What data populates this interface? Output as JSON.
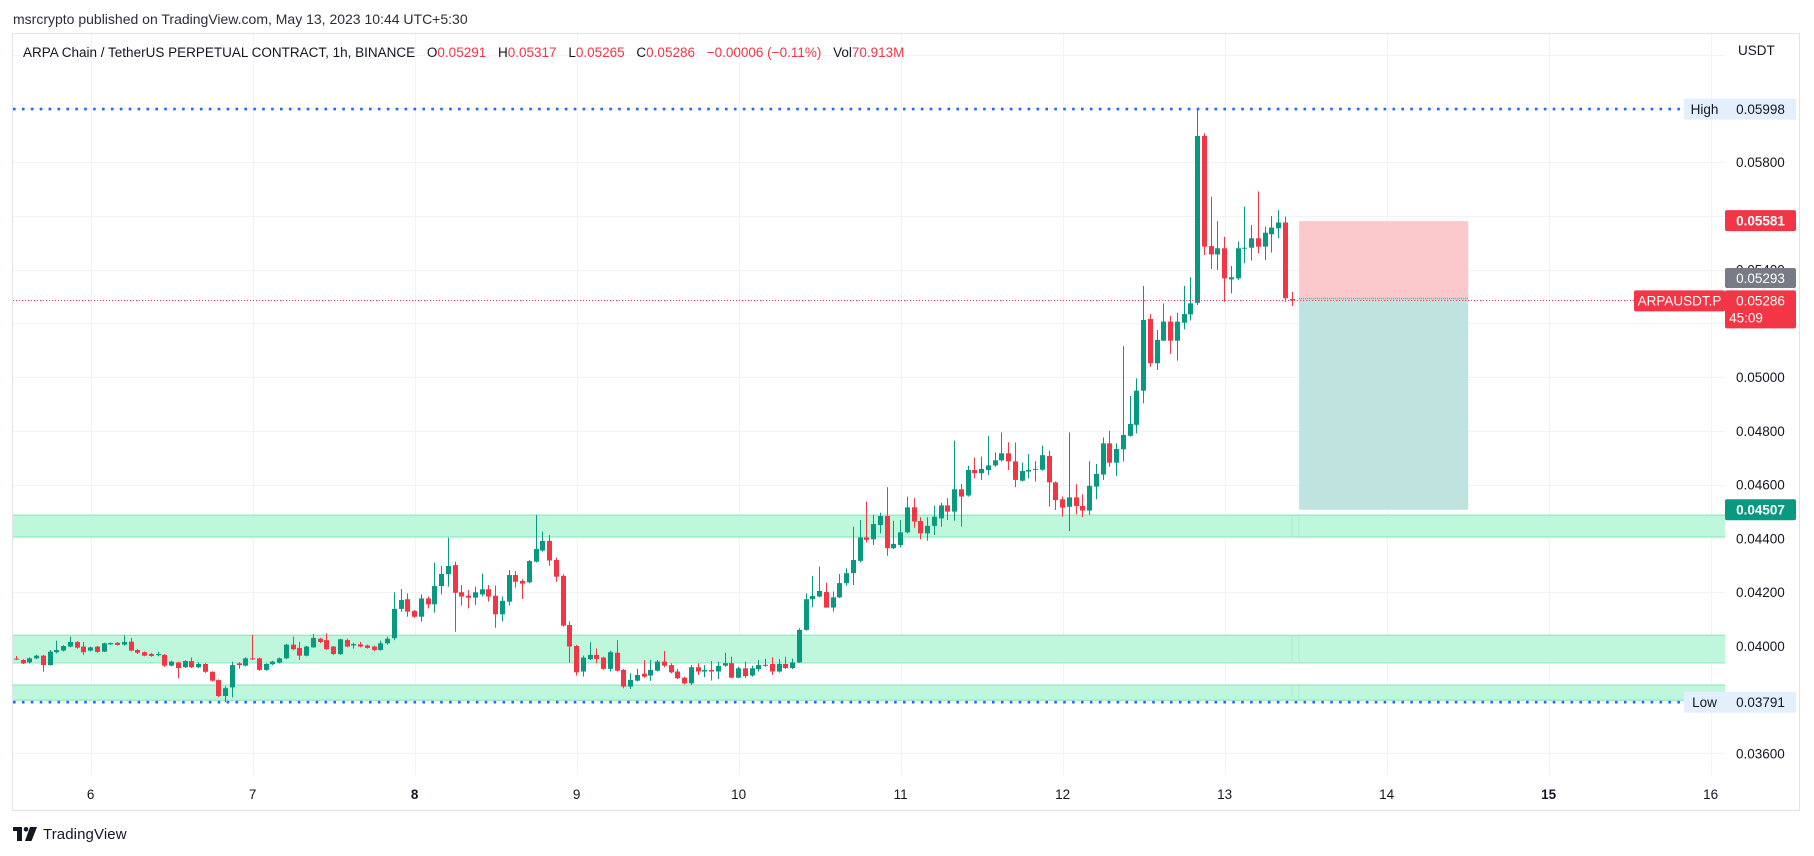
{
  "header": {
    "publish_line": "msrcrypto published on TradingView.com, May 13, 2023 10:44 UTC+5:30"
  },
  "legend": {
    "symbol_title": "ARPA Chain / TetherUS PERPETUAL CONTRACT, 1h, BINANCE",
    "open_label": "O",
    "open": "0.05291",
    "high_label": "H",
    "high": "0.05317",
    "low_label": "L",
    "low": "0.05265",
    "close_label": "C",
    "close": "0.05286",
    "change": "−0.00006 (−0.11%)",
    "volume_label": "Vol",
    "volume": "70.913M"
  },
  "price_axis": {
    "currency": "USDT",
    "tick_labels": [
      {
        "text": "0.05800",
        "value": 0.058
      },
      {
        "text": "0.05400",
        "value": 0.054
      },
      {
        "text": "0.05000",
        "value": 0.05
      },
      {
        "text": "0.04800",
        "value": 0.048
      },
      {
        "text": "0.04600",
        "value": 0.046
      },
      {
        "text": "0.04400",
        "value": 0.044
      },
      {
        "text": "0.04200",
        "value": 0.042
      },
      {
        "text": "0.04000",
        "value": 0.04
      },
      {
        "text": "0.03600",
        "value": 0.036
      }
    ]
  },
  "markers": {
    "high": {
      "label": "High",
      "price": "0.05998",
      "value": 0.05998
    },
    "low": {
      "label": "Low",
      "price": "0.03791",
      "value": 0.03791
    },
    "last_price": {
      "symbol": "ARPAUSDT.P",
      "price": "0.05286",
      "value": 0.05286,
      "countdown": "45:09"
    },
    "stop_loss": {
      "price": "0.05581",
      "value": 0.05581
    },
    "entry": {
      "price": "0.05293",
      "value": 0.05293
    },
    "take_profit": {
      "price": "0.04507",
      "value": 0.04507
    }
  },
  "footer": {
    "brand": "TradingView"
  },
  "colors": {
    "up": "#089981",
    "down": "#f23645",
    "zone_fill": "#bff7dd",
    "zone_border": "#92e8c2",
    "stop_fill": "#fbc9cc",
    "target_fill": "#bfe3df",
    "marker_line": "#2962ff",
    "grid": "#f0f3fa",
    "frame": "#e0e3eb",
    "tag_bg": "#e3effd",
    "entry_tag": "#787b86",
    "text": "#131722"
  },
  "chart_data": {
    "type": "candlestick",
    "title": "ARPA Chain / TetherUS PERPETUAL CONTRACT, 1h, BINANCE",
    "interval": "1h",
    "xlabel": "",
    "ylabel": "USDT",
    "ylim": [
      0.0352,
      0.062772
    ],
    "y_grid_step": 0.002,
    "xlim": [
      -0.44,
      253.2
    ],
    "grid": true,
    "x_labels": [
      {
        "label": "6",
        "index": 11.07,
        "bold": false
      },
      {
        "label": "7",
        "index": 35.07,
        "bold": false
      },
      {
        "label": "8",
        "index": 59.07,
        "bold": true
      },
      {
        "label": "9",
        "index": 83.07,
        "bold": false
      },
      {
        "label": "10",
        "index": 107.07,
        "bold": false
      },
      {
        "label": "11",
        "index": 131.07,
        "bold": false
      },
      {
        "label": "12",
        "index": 155.07,
        "bold": false
      },
      {
        "label": "13",
        "index": 179.07,
        "bold": false
      },
      {
        "label": "14",
        "index": 203.07,
        "bold": false
      },
      {
        "label": "15",
        "index": 227.07,
        "bold": true
      },
      {
        "label": "16",
        "index": 251.07,
        "bold": false
      }
    ],
    "candle_fields": [
      "open",
      "high",
      "low",
      "close"
    ],
    "candles": [
      [
        0.03953,
        0.03963,
        0.03948,
        0.03951
      ],
      [
        0.03948,
        0.03951,
        0.03933,
        0.03935
      ],
      [
        0.03939,
        0.03957,
        0.03935,
        0.03954
      ],
      [
        0.03954,
        0.03968,
        0.03951,
        0.03964
      ],
      [
        0.03964,
        0.03967,
        0.03904,
        0.03929
      ],
      [
        0.03929,
        0.03985,
        0.03927,
        0.03979
      ],
      [
        0.03977,
        0.0402,
        0.03972,
        0.03985
      ],
      [
        0.03983,
        0.04003,
        0.0398,
        0.04
      ],
      [
        0.03998,
        0.04035,
        0.03995,
        0.04015
      ],
      [
        0.04015,
        0.04018,
        0.0399,
        0.03994
      ],
      [
        0.03998,
        0.04015,
        0.03967,
        0.03977
      ],
      [
        0.03983,
        0.03998,
        0.0398,
        0.03995
      ],
      [
        0.03998,
        0.04,
        0.03975,
        0.03978
      ],
      [
        0.03979,
        0.04012,
        0.03977,
        0.0401
      ],
      [
        0.04006,
        0.04013,
        0.04005,
        0.04011
      ],
      [
        0.04012,
        0.04015,
        0.04002,
        0.04004
      ],
      [
        0.04005,
        0.0404,
        0.04002,
        0.04015
      ],
      [
        0.04016,
        0.0403,
        0.0398,
        0.03983
      ],
      [
        0.03985,
        0.03988,
        0.0397,
        0.03975
      ],
      [
        0.03977,
        0.0398,
        0.03962,
        0.03964
      ],
      [
        0.0397,
        0.03975,
        0.0396,
        0.03963
      ],
      [
        0.03966,
        0.03978,
        0.03962,
        0.0397
      ],
      [
        0.03967,
        0.0397,
        0.03922,
        0.03927
      ],
      [
        0.03927,
        0.03945,
        0.03924,
        0.03942
      ],
      [
        0.03939,
        0.03942,
        0.0388,
        0.03918
      ],
      [
        0.03921,
        0.03947,
        0.03918,
        0.03944
      ],
      [
        0.03944,
        0.03957,
        0.03918,
        0.03921
      ],
      [
        0.03921,
        0.0394,
        0.03918,
        0.03933
      ],
      [
        0.03933,
        0.03936,
        0.039,
        0.03904
      ],
      [
        0.03904,
        0.03906,
        0.03868,
        0.03871
      ],
      [
        0.03873,
        0.03876,
        0.03809,
        0.03814
      ],
      [
        0.03814,
        0.0385,
        0.03791,
        0.03843
      ],
      [
        0.03846,
        0.03942,
        0.03809,
        0.03929
      ],
      [
        0.03935,
        0.0394,
        0.03915,
        0.03929
      ],
      [
        0.03927,
        0.03958,
        0.03924,
        0.03954
      ],
      [
        0.03954,
        0.04041,
        0.03948,
        0.03951
      ],
      [
        0.03954,
        0.03957,
        0.03908,
        0.03911
      ],
      [
        0.03911,
        0.03936,
        0.03908,
        0.03933
      ],
      [
        0.03932,
        0.03945,
        0.03929,
        0.03942
      ],
      [
        0.03938,
        0.03957,
        0.03935,
        0.03954
      ],
      [
        0.03954,
        0.04008,
        0.03951,
        0.04005
      ],
      [
        0.04005,
        0.04035,
        0.03984,
        0.03988
      ],
      [
        0.03993,
        0.04015,
        0.03948,
        0.03964
      ],
      [
        0.03964,
        0.04001,
        0.03962,
        0.03998
      ],
      [
        0.03995,
        0.04045,
        0.03993,
        0.0403
      ],
      [
        0.04027,
        0.0403,
        0.0401,
        0.04015
      ],
      [
        0.04022,
        0.04047,
        0.03985,
        0.03988
      ],
      [
        0.03998,
        0.04,
        0.03967,
        0.0397
      ],
      [
        0.0397,
        0.04027,
        0.03967,
        0.04025
      ],
      [
        0.04022,
        0.04027,
        0.03995,
        0.03998
      ],
      [
        0.04002,
        0.04012,
        0.0399,
        0.04007
      ],
      [
        0.04006,
        0.04015,
        0.03995,
        0.03998
      ],
      [
        0.04002,
        0.04005,
        0.0399,
        0.03993
      ],
      [
        0.03998,
        0.04001,
        0.0398,
        0.03985
      ],
      [
        0.03985,
        0.0402,
        0.03983,
        0.0401
      ],
      [
        0.0401,
        0.04035,
        0.04005,
        0.04027
      ],
      [
        0.04029,
        0.042,
        0.04022,
        0.04138
      ],
      [
        0.04138,
        0.04212,
        0.04128,
        0.04171
      ],
      [
        0.04174,
        0.04196,
        0.04109,
        0.04128
      ],
      [
        0.0413,
        0.04134,
        0.04105,
        0.04109
      ],
      [
        0.04109,
        0.04192,
        0.04091,
        0.04177
      ],
      [
        0.04177,
        0.04184,
        0.0414,
        0.04155
      ],
      [
        0.04155,
        0.0431,
        0.04124,
        0.04223
      ],
      [
        0.04223,
        0.04298,
        0.04192,
        0.04268
      ],
      [
        0.04267,
        0.04403,
        0.04221,
        0.04298
      ],
      [
        0.04301,
        0.04314,
        0.04053,
        0.04198
      ],
      [
        0.042,
        0.04227,
        0.0415,
        0.04184
      ],
      [
        0.04187,
        0.04208,
        0.0414,
        0.0418
      ],
      [
        0.0418,
        0.04221,
        0.04153,
        0.042
      ],
      [
        0.04192,
        0.04269,
        0.04184,
        0.04211
      ],
      [
        0.04211,
        0.04227,
        0.04165,
        0.04184
      ],
      [
        0.04187,
        0.04225,
        0.04068,
        0.04118
      ],
      [
        0.04118,
        0.04184,
        0.04091,
        0.04168
      ],
      [
        0.04165,
        0.04283,
        0.0415,
        0.04264
      ],
      [
        0.04264,
        0.04279,
        0.04217,
        0.04239
      ],
      [
        0.04242,
        0.04249,
        0.04175,
        0.04232
      ],
      [
        0.04237,
        0.0432,
        0.04233,
        0.04316
      ],
      [
        0.04314,
        0.04488,
        0.04311,
        0.04361
      ],
      [
        0.04355,
        0.04426,
        0.04351,
        0.04391
      ],
      [
        0.04391,
        0.04413,
        0.04299,
        0.04318
      ],
      [
        0.0432,
        0.04329,
        0.04239,
        0.04258
      ],
      [
        0.04261,
        0.04267,
        0.04072,
        0.04076
      ],
      [
        0.04078,
        0.04091,
        0.03939,
        0.03998
      ],
      [
        0.04,
        0.04004,
        0.0389,
        0.03902
      ],
      [
        0.03905,
        0.03964,
        0.03886,
        0.03957
      ],
      [
        0.03951,
        0.04014,
        0.03948,
        0.03967
      ],
      [
        0.03967,
        0.03991,
        0.03936,
        0.03952
      ],
      [
        0.03957,
        0.0396,
        0.03911,
        0.03915
      ],
      [
        0.03915,
        0.03983,
        0.03905,
        0.03977
      ],
      [
        0.03975,
        0.04022,
        0.03905,
        0.03908
      ],
      [
        0.03911,
        0.03915,
        0.03843,
        0.03849
      ],
      [
        0.03849,
        0.03898,
        0.0384,
        0.03874
      ],
      [
        0.03871,
        0.03915,
        0.03868,
        0.03892
      ],
      [
        0.03897,
        0.03948,
        0.03882,
        0.03886
      ],
      [
        0.0389,
        0.03948,
        0.0387,
        0.03911
      ],
      [
        0.03908,
        0.03948,
        0.03905,
        0.03942
      ],
      [
        0.03942,
        0.03982,
        0.03921,
        0.03927
      ],
      [
        0.03929,
        0.03936,
        0.03898,
        0.03902
      ],
      [
        0.03905,
        0.03915,
        0.03877,
        0.0388
      ],
      [
        0.03882,
        0.03886,
        0.03857,
        0.03861
      ],
      [
        0.03861,
        0.03929,
        0.03855,
        0.03921
      ],
      [
        0.03921,
        0.03936,
        0.03892,
        0.03905
      ],
      [
        0.03905,
        0.03929,
        0.03884,
        0.03911
      ],
      [
        0.03911,
        0.03944,
        0.03871,
        0.03905
      ],
      [
        0.03905,
        0.03942,
        0.03877,
        0.03926
      ],
      [
        0.03927,
        0.03975,
        0.03923,
        0.03936
      ],
      [
        0.03936,
        0.0396,
        0.0388,
        0.03882
      ],
      [
        0.03882,
        0.03923,
        0.0388,
        0.03917
      ],
      [
        0.03917,
        0.03942,
        0.0388,
        0.03888
      ],
      [
        0.0389,
        0.03927,
        0.03886,
        0.03917
      ],
      [
        0.03914,
        0.03948,
        0.03905,
        0.03929
      ],
      [
        0.03927,
        0.03952,
        0.03923,
        0.0393
      ],
      [
        0.03933,
        0.03958,
        0.03892,
        0.03905
      ],
      [
        0.03905,
        0.03951,
        0.03901,
        0.03933
      ],
      [
        0.03933,
        0.0396,
        0.03915,
        0.03918
      ],
      [
        0.03918,
        0.03953,
        0.03914,
        0.03939
      ],
      [
        0.03939,
        0.04066,
        0.03937,
        0.0406
      ],
      [
        0.0406,
        0.04196,
        0.04057,
        0.04174
      ],
      [
        0.04174,
        0.04261,
        0.04144,
        0.04186
      ],
      [
        0.04184,
        0.04296,
        0.04181,
        0.04205
      ],
      [
        0.04201,
        0.04236,
        0.04143,
        0.04143
      ],
      [
        0.04143,
        0.04203,
        0.04128,
        0.04181
      ],
      [
        0.04181,
        0.04268,
        0.04178,
        0.04234
      ],
      [
        0.04234,
        0.04289,
        0.04224,
        0.04271
      ],
      [
        0.04271,
        0.04444,
        0.04227,
        0.0432
      ],
      [
        0.04317,
        0.04469,
        0.04311,
        0.04404
      ],
      [
        0.04404,
        0.04537,
        0.04385,
        0.04395
      ],
      [
        0.04397,
        0.04488,
        0.04376,
        0.04454
      ],
      [
        0.0445,
        0.04496,
        0.04419,
        0.04484
      ],
      [
        0.04484,
        0.04591,
        0.04336,
        0.04364
      ],
      [
        0.04364,
        0.04466,
        0.04361,
        0.0438
      ],
      [
        0.04376,
        0.04469,
        0.04367,
        0.04423
      ],
      [
        0.04423,
        0.04556,
        0.04419,
        0.04516
      ],
      [
        0.04516,
        0.0455,
        0.0444,
        0.04463
      ],
      [
        0.04465,
        0.04479,
        0.04397,
        0.04419
      ],
      [
        0.04419,
        0.04479,
        0.04392,
        0.04447
      ],
      [
        0.04447,
        0.04523,
        0.04413,
        0.04481
      ],
      [
        0.04475,
        0.04533,
        0.04444,
        0.04523
      ],
      [
        0.04523,
        0.0455,
        0.04469,
        0.045
      ],
      [
        0.045,
        0.04764,
        0.04466,
        0.04583
      ],
      [
        0.04583,
        0.04603,
        0.04444,
        0.04556
      ],
      [
        0.0456,
        0.0467,
        0.04556,
        0.04655
      ],
      [
        0.04655,
        0.04701,
        0.04624,
        0.04643
      ],
      [
        0.04643,
        0.04705,
        0.04618,
        0.04659
      ],
      [
        0.04655,
        0.04781,
        0.04636,
        0.04672
      ],
      [
        0.04672,
        0.0472,
        0.04667,
        0.04691
      ],
      [
        0.04691,
        0.04795,
        0.04686,
        0.04717
      ],
      [
        0.04717,
        0.04758,
        0.04655,
        0.04687
      ],
      [
        0.04687,
        0.04757,
        0.04591,
        0.04618
      ],
      [
        0.04615,
        0.04683,
        0.04612,
        0.04651
      ],
      [
        0.04649,
        0.04714,
        0.04624,
        0.04655
      ],
      [
        0.04656,
        0.04688,
        0.04612,
        0.04659
      ],
      [
        0.04656,
        0.04745,
        0.04652,
        0.0471
      ],
      [
        0.04707,
        0.04726,
        0.04519,
        0.04609
      ],
      [
        0.04609,
        0.04612,
        0.04506,
        0.04543
      ],
      [
        0.04546,
        0.04556,
        0.04481,
        0.04515
      ],
      [
        0.04518,
        0.04795,
        0.04428,
        0.04553
      ],
      [
        0.04553,
        0.04602,
        0.0449,
        0.04521
      ],
      [
        0.04521,
        0.04564,
        0.04479,
        0.04504
      ],
      [
        0.04504,
        0.04688,
        0.04488,
        0.04596
      ],
      [
        0.04593,
        0.04677,
        0.04546,
        0.0464
      ],
      [
        0.04638,
        0.04776,
        0.04618,
        0.04754
      ],
      [
        0.04754,
        0.04801,
        0.04667,
        0.04682
      ],
      [
        0.04682,
        0.04754,
        0.04633,
        0.04733
      ],
      [
        0.04732,
        0.05116,
        0.04686,
        0.04785
      ],
      [
        0.04782,
        0.0493,
        0.04779,
        0.04826
      ],
      [
        0.04823,
        0.04996,
        0.04791,
        0.0495
      ],
      [
        0.0495,
        0.0534,
        0.04903,
        0.05213
      ],
      [
        0.05217,
        0.05235,
        0.05039,
        0.05052
      ],
      [
        0.05052,
        0.05176,
        0.05027,
        0.05139
      ],
      [
        0.05136,
        0.05275,
        0.05136,
        0.05207
      ],
      [
        0.05207,
        0.05229,
        0.05087,
        0.05136
      ],
      [
        0.05136,
        0.0524,
        0.05062,
        0.05207
      ],
      [
        0.05203,
        0.0534,
        0.05178,
        0.05235
      ],
      [
        0.05234,
        0.05372,
        0.05211,
        0.05275
      ],
      [
        0.05277,
        0.05998,
        0.05269,
        0.05898
      ],
      [
        0.05898,
        0.05908,
        0.05455,
        0.05486
      ],
      [
        0.05488,
        0.05672,
        0.05403,
        0.05457
      ],
      [
        0.05457,
        0.05581,
        0.05399,
        0.0548
      ],
      [
        0.0548,
        0.05523,
        0.05281,
        0.05368
      ],
      [
        0.05364,
        0.05414,
        0.05312,
        0.05372
      ],
      [
        0.05368,
        0.05505,
        0.05362,
        0.0548
      ],
      [
        0.0548,
        0.05635,
        0.05424,
        0.05482
      ],
      [
        0.05482,
        0.05567,
        0.05434,
        0.05517
      ],
      [
        0.05517,
        0.05691,
        0.05461,
        0.05486
      ],
      [
        0.05486,
        0.0556,
        0.05436,
        0.05538
      ],
      [
        0.05532,
        0.056,
        0.05464,
        0.05557
      ],
      [
        0.05554,
        0.05622,
        0.05517,
        0.05576
      ],
      [
        0.05576,
        0.05598,
        0.05281,
        0.05294
      ],
      [
        0.05291,
        0.05317,
        0.05265,
        0.05286
      ]
    ],
    "zones": [
      {
        "top": 0.04487,
        "bottom": 0.04406
      },
      {
        "top": 0.0404,
        "bottom": 0.03937
      },
      {
        "top": 0.03855,
        "bottom": 0.03798
      }
    ],
    "zone_marker_indices": [
      189.04,
      190.07
    ],
    "position": {
      "type": "short",
      "start_index": 190.1,
      "end_index": 215.16,
      "entry": 0.05293,
      "stop": 0.05581,
      "target": 0.04507
    },
    "high_line": 0.05998,
    "low_line": 0.03791,
    "last_price": 0.05286
  }
}
